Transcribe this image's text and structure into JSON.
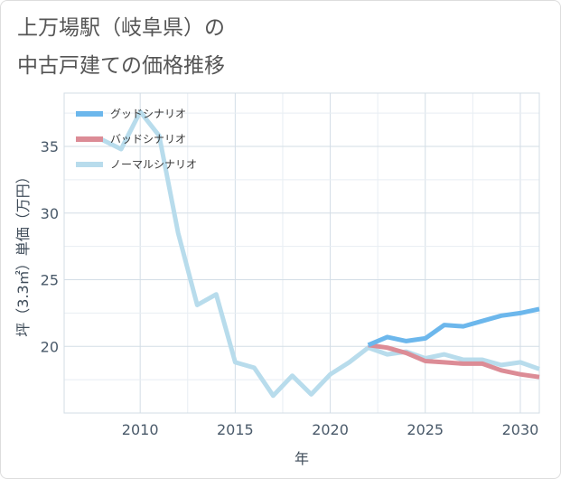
{
  "title": {
    "line1": "上万場駅（岐阜県）の",
    "line2": "中古戸建ての価格推移"
  },
  "chart_data": {
    "type": "line",
    "xlabel": "年",
    "ylabel": "坪（3.3㎡）単価（万円）",
    "xlim": [
      2006,
      2031
    ],
    "ylim": [
      15,
      39
    ],
    "x_ticks": [
      2010,
      2015,
      2020,
      2025,
      2030
    ],
    "y_ticks": [
      20,
      25,
      30,
      35
    ],
    "grid": true,
    "legend_position": "top-left",
    "series": [
      {
        "name": "グッドシナリオ",
        "color": "#6cb7ec",
        "x": [
          2022,
          2023,
          2024,
          2025,
          2026,
          2027,
          2028,
          2029,
          2030,
          2031
        ],
        "values": [
          20.1,
          20.7,
          20.4,
          20.6,
          21.6,
          21.5,
          21.9,
          22.3,
          22.5,
          22.8
        ]
      },
      {
        "name": "バッドシナリオ",
        "color": "#dc8c96",
        "x": [
          2022,
          2023,
          2024,
          2025,
          2026,
          2027,
          2028,
          2029,
          2030,
          2031
        ],
        "values": [
          20.1,
          19.9,
          19.5,
          18.9,
          18.8,
          18.7,
          18.7,
          18.2,
          17.9,
          17.7
        ]
      },
      {
        "name": "ノーマルシナリオ",
        "color": "#b8dcec",
        "x": [
          2008,
          2009,
          2010,
          2011,
          2012,
          2013,
          2014,
          2015,
          2016,
          2017,
          2018,
          2019,
          2020,
          2021,
          2022,
          2023,
          2024,
          2025,
          2026,
          2027,
          2028,
          2029,
          2030,
          2031
        ],
        "values": [
          35.5,
          34.8,
          37.6,
          35.8,
          28.5,
          23.1,
          23.9,
          18.8,
          18.4,
          16.3,
          17.8,
          16.4,
          17.9,
          18.8,
          19.9,
          19.4,
          19.6,
          19.1,
          19.4,
          19.0,
          19.0,
          18.6,
          18.8,
          18.3
        ]
      }
    ]
  }
}
